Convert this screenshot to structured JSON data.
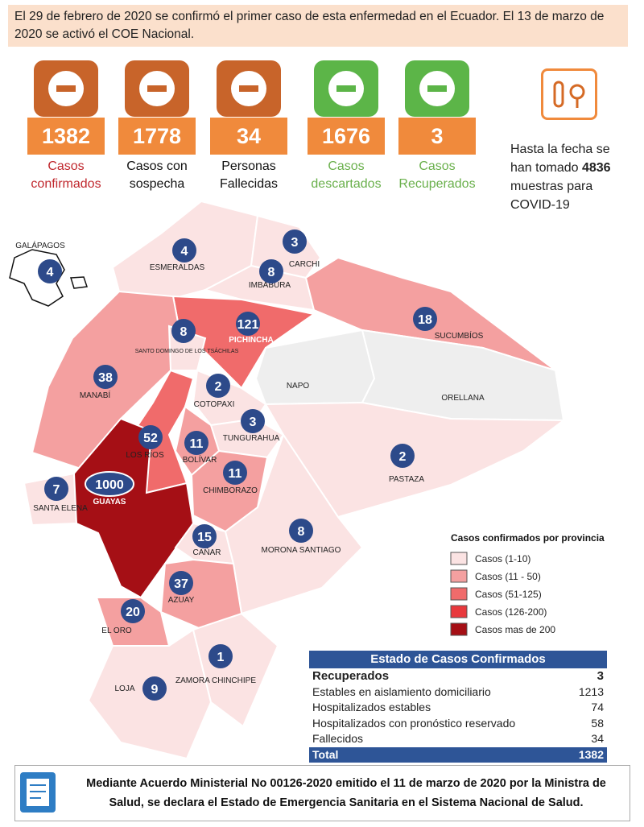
{
  "header": {
    "text": "El 29 de febrero de 2020 se confirmó el primer caso de esta enfermedad en el Ecuador. El 13 de marzo de 2020 se activó el COE Nacional."
  },
  "stats": [
    {
      "value": 1382,
      "label": "Casos confirmados"
    },
    {
      "value": 1778,
      "label": "Casos con sospecha"
    },
    {
      "value": 34,
      "label": "Personas Fallecidas"
    },
    {
      "value": 1676,
      "label": "Casos descartados"
    },
    {
      "value": 3,
      "label": "Casos Recuperados"
    }
  ],
  "samples": {
    "prefix": "Hasta la fecha se han tomado",
    "count": 4836,
    "suffix": "muestras para COVID-19"
  },
  "map": {
    "provinces": [
      {
        "name": "GALÁPAGOS",
        "cases": 4
      },
      {
        "name": "ESMERALDAS",
        "cases": 4
      },
      {
        "name": "CARCHI",
        "cases": 3
      },
      {
        "name": "IMBABURA",
        "cases": 8
      },
      {
        "name": "PICHINCHA",
        "cases": 121
      },
      {
        "name": "SUCUMBÍOS",
        "cases": 18
      },
      {
        "name": "SANTO DOMINGO DE LOS TSÁCHILAS",
        "cases": 8
      },
      {
        "name": "MANABÍ",
        "cases": 38
      },
      {
        "name": "COTOPAXI",
        "cases": 2
      },
      {
        "name": "NAPO",
        "cases": null
      },
      {
        "name": "ORELLANA",
        "cases": null
      },
      {
        "name": "TUNGURAHUA",
        "cases": 3
      },
      {
        "name": "LOS RÍOS",
        "cases": 52
      },
      {
        "name": "BOLÍVAR",
        "cases": 11
      },
      {
        "name": "CHIMBORAZO",
        "cases": 11
      },
      {
        "name": "PASTAZA",
        "cases": 2
      },
      {
        "name": "SANTA ELENA",
        "cases": 7
      },
      {
        "name": "GUAYAS",
        "cases": 1000,
        "secondary_label": "GUAYAS"
      },
      {
        "name": "CAÑAR",
        "cases": 15
      },
      {
        "name": "MORONA SANTIAGO",
        "cases": 8
      },
      {
        "name": "AZUAY",
        "cases": 37
      },
      {
        "name": "EL ORO",
        "cases": 20
      },
      {
        "name": "LOJA",
        "cases": 9
      },
      {
        "name": "ZAMORA CHINCHIPE",
        "cases": 1
      }
    ]
  },
  "legend": {
    "title": "Casos confirmados por provincia",
    "items": [
      "Casos (1-10)",
      "Casos (11 - 50)",
      "Casos (51-125)",
      "Casos (126-200)",
      "Casos mas de 200"
    ]
  },
  "table": {
    "title": "Estado de Casos Confirmados",
    "rows": [
      [
        "Recuperados",
        3
      ],
      [
        "Estables en aislamiento domiciliario",
        1213
      ],
      [
        "Hospitalizados estables",
        74
      ],
      [
        "Hospitalizados con pronóstico reservado",
        58
      ],
      [
        "Fallecidos",
        34
      ]
    ],
    "total": [
      "Total",
      1382
    ]
  },
  "footer": {
    "text": "Mediante Acuerdo Ministerial No 00126-2020 emitido el 11 de marzo de 2020 por la Ministra de Salud, se declara el Estado de Emergencia Sanitaria en el Sistema Nacional de Salud."
  }
}
